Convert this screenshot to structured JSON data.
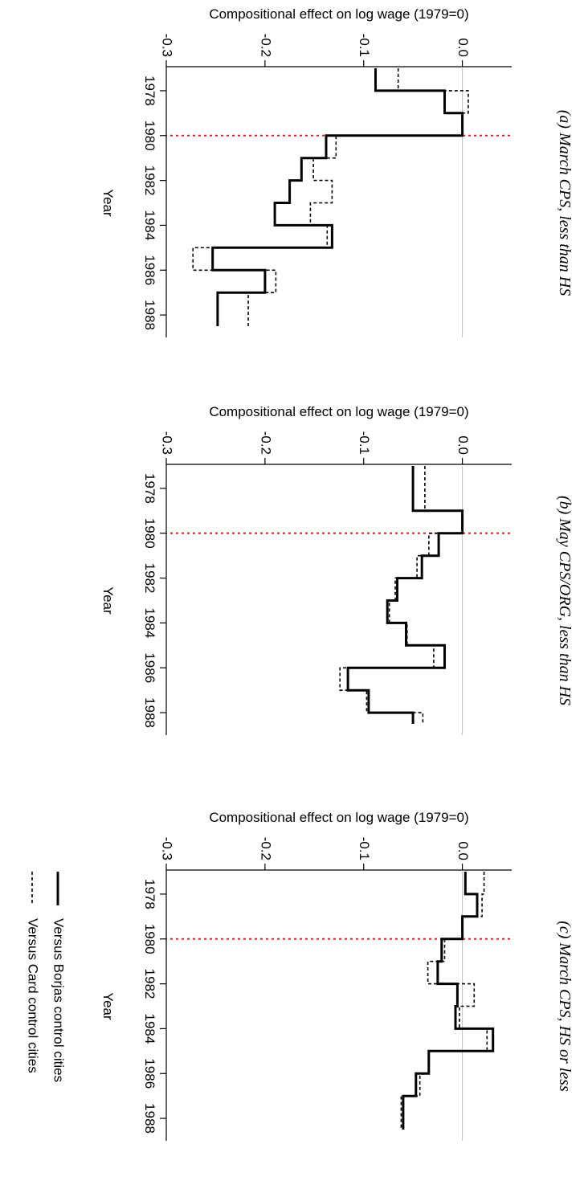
{
  "chart_data": [
    {
      "type": "line",
      "title": "(a) March CPS, less than HS",
      "xlabel": "Year",
      "ylabel": "Compositional effect on log wage (1979=0)",
      "x_ticks": [
        "1978",
        "1980",
        "1982",
        "1984",
        "1986",
        "1988"
      ],
      "y_ticks": [
        "0.0",
        "-0.1",
        "-0.2",
        "-0.3"
      ],
      "xlim": [
        1977,
        1989
      ],
      "ylim": [
        -0.3,
        0.05
      ],
      "x": [
        1977,
        1978,
        1979,
        1980,
        1981,
        1982,
        1983,
        1984,
        1985,
        1986,
        1987,
        1988
      ],
      "series": [
        {
          "name": "Versus Borjas control cities",
          "style": "solid",
          "values": [
            -0.088,
            -0.018,
            0.0,
            -0.138,
            -0.163,
            -0.175,
            -0.19,
            -0.132,
            -0.253,
            -0.2,
            -0.248,
            -0.248
          ]
        },
        {
          "name": "Versus Card control cities",
          "style": "dashed",
          "values": [
            -0.065,
            0.006,
            0.0,
            -0.128,
            -0.151,
            -0.132,
            -0.154,
            -0.137,
            -0.273,
            -0.189,
            -0.217,
            -0.217
          ]
        }
      ],
      "reference_x": 1980
    },
    {
      "type": "line",
      "title": "(b) May CPS/ORG, less than HS",
      "xlabel": "Year",
      "ylabel": "Compositional effect on log wage (1979=0)",
      "x_ticks": [
        "1978",
        "1980",
        "1982",
        "1984",
        "1986",
        "1988"
      ],
      "y_ticks": [
        "0.0",
        "-0.1",
        "-0.2",
        "-0.3"
      ],
      "xlim": [
        1977,
        1989
      ],
      "ylim": [
        -0.3,
        0.05
      ],
      "x": [
        1977,
        1978,
        1979,
        1980,
        1981,
        1982,
        1983,
        1984,
        1985,
        1986,
        1987,
        1988
      ],
      "series": [
        {
          "name": "Versus Borjas control cities",
          "style": "solid",
          "values": [
            -0.05,
            -0.05,
            0.0,
            -0.024,
            -0.041,
            -0.066,
            -0.076,
            -0.057,
            -0.018,
            -0.116,
            -0.095,
            -0.05
          ]
        },
        {
          "name": "Versus Card control cities",
          "style": "dashed",
          "values": [
            -0.038,
            -0.038,
            0.0,
            -0.034,
            -0.046,
            -0.068,
            -0.074,
            -0.056,
            -0.029,
            -0.124,
            -0.097,
            -0.04
          ]
        }
      ],
      "reference_x": 1980
    },
    {
      "type": "line",
      "title": "(c) March CPS, HS or less",
      "xlabel": "Year",
      "ylabel": "Compositional effect on log wage (1979=0)",
      "x_ticks": [
        "1978",
        "1980",
        "1982",
        "1984",
        "1986",
        "1988"
      ],
      "y_ticks": [
        "0.0",
        "-0.1",
        "-0.2",
        "-0.3"
      ],
      "xlim": [
        1977,
        1989
      ],
      "ylim": [
        -0.3,
        0.05
      ],
      "x": [
        1977,
        1978,
        1979,
        1980,
        1981,
        1982,
        1983,
        1984,
        1985,
        1986,
        1987,
        1988
      ],
      "series": [
        {
          "name": "Versus Borjas control cities",
          "style": "solid",
          "values": [
            0.003,
            0.015,
            0.0,
            -0.021,
            -0.025,
            -0.005,
            -0.007,
            0.031,
            -0.034,
            -0.047,
            -0.06,
            -0.06
          ]
        },
        {
          "name": "Versus Card control cities",
          "style": "dashed",
          "values": [
            0.022,
            0.02,
            0.0,
            -0.018,
            -0.035,
            0.012,
            -0.003,
            0.025,
            -0.034,
            -0.043,
            -0.062,
            -0.062
          ]
        }
      ],
      "reference_x": 1980
    }
  ],
  "legend": {
    "items": [
      {
        "label": "Versus Borjas control cities",
        "style": "solid"
      },
      {
        "label": "Versus Card control cities",
        "style": "dashed"
      }
    ],
    "placement": "bottom-center"
  },
  "colors": {
    "reference_line": "#e02020",
    "zero_line": "#c0c0c0",
    "series": "#000000"
  }
}
